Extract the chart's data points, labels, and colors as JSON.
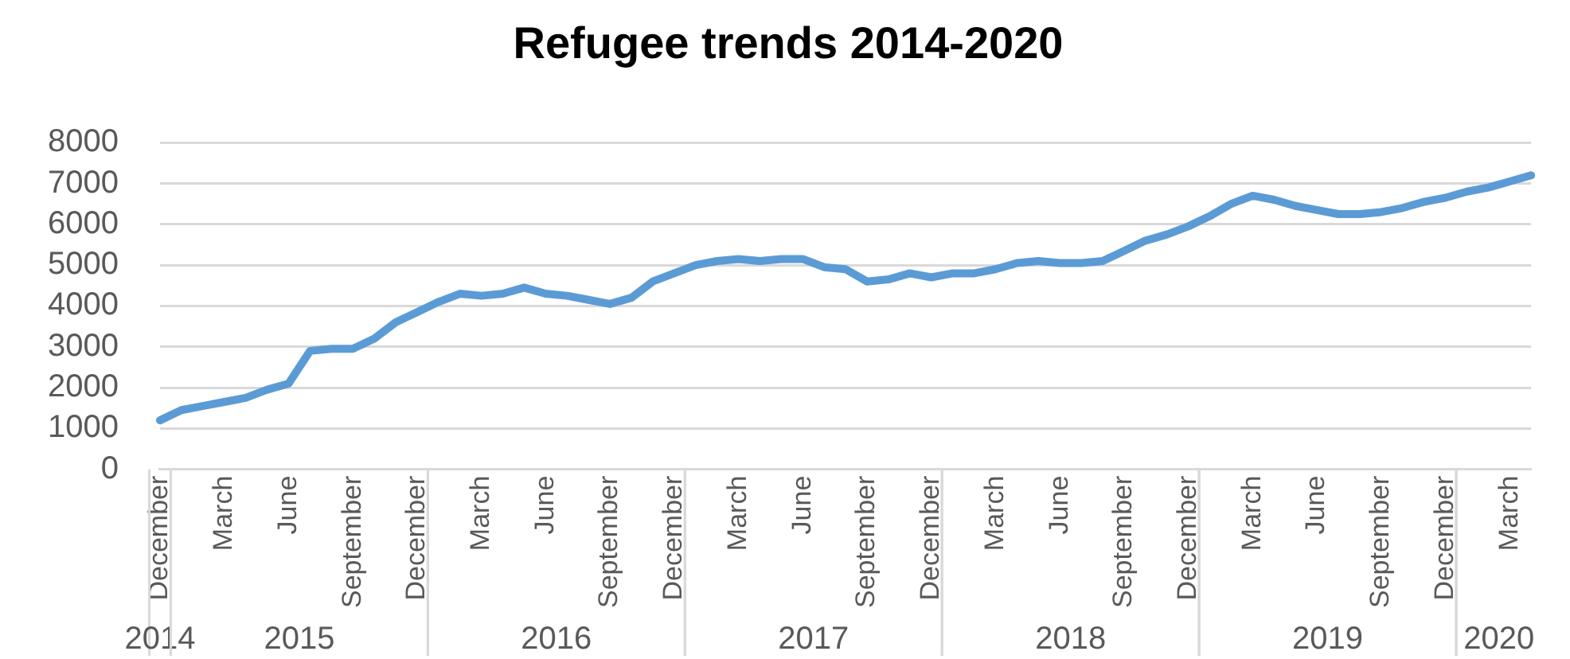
{
  "chart_data": {
    "type": "line",
    "title": "Refugee trends 2014-2020",
    "categories": [
      "December",
      null,
      null,
      "March",
      null,
      null,
      "June",
      null,
      null,
      "September",
      null,
      null,
      "December",
      null,
      null,
      "March",
      null,
      null,
      "June",
      null,
      null,
      "September",
      null,
      null,
      "December",
      null,
      null,
      "March",
      null,
      null,
      "June",
      null,
      null,
      "September",
      null,
      null,
      "December",
      null,
      null,
      "March",
      null,
      null,
      "June",
      null,
      null,
      "September",
      null,
      null,
      "December",
      null,
      null,
      "March",
      null,
      null,
      "June",
      null,
      null,
      "September",
      null,
      null,
      "December",
      null,
      null,
      "March",
      null
    ],
    "series": [
      {
        "color": "#5b9bd5",
        "values": [
          1200,
          1450,
          1550,
          1650,
          1750,
          1950,
          2100,
          2900,
          2950,
          2950,
          3200,
          3600,
          3850,
          4100,
          4300,
          4250,
          4300,
          4450,
          4300,
          4250,
          4150,
          4050,
          4200,
          4600,
          4800,
          5000,
          5100,
          5150,
          5100,
          5150,
          5150,
          4950,
          4900,
          4600,
          4650,
          4800,
          4700,
          4800,
          4800,
          4900,
          5050,
          5100,
          5050,
          5050,
          5100,
          5350,
          5600,
          5750,
          5950,
          6200,
          6500,
          6700,
          6600,
          6450,
          6350,
          6250,
          6250,
          6300,
          6400,
          6550,
          6650,
          6800,
          6900,
          7050,
          7200
        ]
      }
    ],
    "ylim": [
      0,
      8000
    ],
    "yticks": [
      0,
      1000,
      2000,
      3000,
      4000,
      5000,
      6000,
      7000,
      8000
    ],
    "grid": "y",
    "legend": false,
    "marker": "none",
    "line_style": "solid",
    "annotations": [
      "2014",
      "2015",
      "2016",
      "2017",
      "2018",
      "2019",
      "2020"
    ]
  }
}
